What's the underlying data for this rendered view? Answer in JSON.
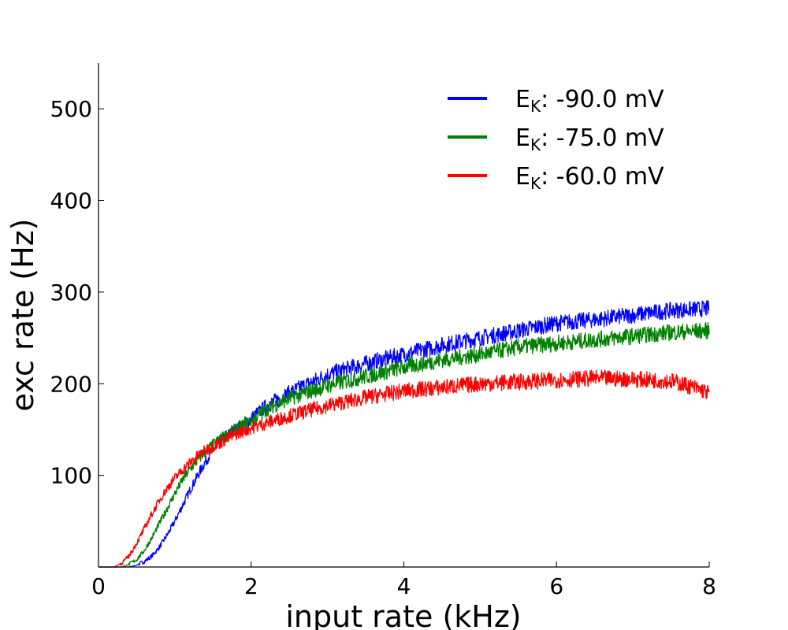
{
  "chart_data": {
    "type": "line",
    "title": "",
    "xlabel": "input rate (kHz)",
    "ylabel": "exc rate (Hz)",
    "xlim": [
      0,
      8
    ],
    "ylim": [
      0,
      550
    ],
    "xticks": [
      0,
      2,
      4,
      6,
      8
    ],
    "yticks": [
      100,
      200,
      300,
      400,
      500
    ],
    "grid": false,
    "legend_position": "top-right",
    "series": [
      {
        "name": "E_K: -90.0 mV",
        "legend_main": "E",
        "legend_sub": "K",
        "legend_rest": ": -90.0 mV",
        "color": "#0000ff",
        "x": [
          0,
          0.4,
          0.5,
          0.6,
          0.7,
          0.8,
          0.9,
          1.0,
          1.1,
          1.2,
          1.3,
          1.4,
          1.5,
          1.6,
          1.8,
          2.0,
          2.2,
          2.5,
          3.0,
          3.5,
          4.0,
          4.5,
          5.0,
          5.5,
          6.0,
          6.5,
          7.0,
          7.5,
          8.0
        ],
        "y": [
          0,
          0,
          2,
          6,
          12,
          22,
          35,
          50,
          67,
          84,
          100,
          115,
          128,
          138,
          150,
          162,
          176,
          190,
          210,
          222,
          232,
          242,
          250,
          258,
          266,
          270,
          275,
          280,
          282
        ]
      },
      {
        "name": "E_K: -75.0 mV",
        "legend_main": "E",
        "legend_sub": "K",
        "legend_rest": ": -75.0 mV",
        "color": "#008000",
        "x": [
          0,
          0.3,
          0.4,
          0.5,
          0.6,
          0.7,
          0.8,
          0.9,
          1.0,
          1.1,
          1.2,
          1.3,
          1.4,
          1.5,
          1.6,
          1.8,
          2.0,
          2.2,
          2.5,
          3.0,
          3.5,
          4.0,
          4.5,
          5.0,
          5.5,
          6.0,
          6.5,
          7.0,
          7.5,
          8.0
        ],
        "y": [
          0,
          0,
          3,
          8,
          18,
          32,
          48,
          64,
          80,
          95,
          107,
          117,
          126,
          133,
          140,
          150,
          160,
          172,
          184,
          198,
          208,
          218,
          226,
          232,
          240,
          244,
          248,
          252,
          256,
          258
        ]
      },
      {
        "name": "E_K: -60.0 mV",
        "legend_main": "E",
        "legend_sub": "K",
        "legend_rest": ": -60.0 mV",
        "color": "#ff0000",
        "x": [
          0,
          0.2,
          0.3,
          0.4,
          0.5,
          0.6,
          0.7,
          0.8,
          0.9,
          1.0,
          1.1,
          1.2,
          1.3,
          1.4,
          1.5,
          1.6,
          1.8,
          2.0,
          2.5,
          3.0,
          3.5,
          4.0,
          4.5,
          5.0,
          5.5,
          6.0,
          6.5,
          7.0,
          7.5,
          7.8,
          8.0
        ],
        "y": [
          0,
          0,
          4,
          12,
          26,
          42,
          58,
          73,
          86,
          97,
          106,
          114,
          121,
          127,
          132,
          136,
          145,
          152,
          165,
          176,
          185,
          192,
          196,
          200,
          202,
          204,
          206,
          205,
          203,
          196,
          190
        ]
      }
    ]
  }
}
